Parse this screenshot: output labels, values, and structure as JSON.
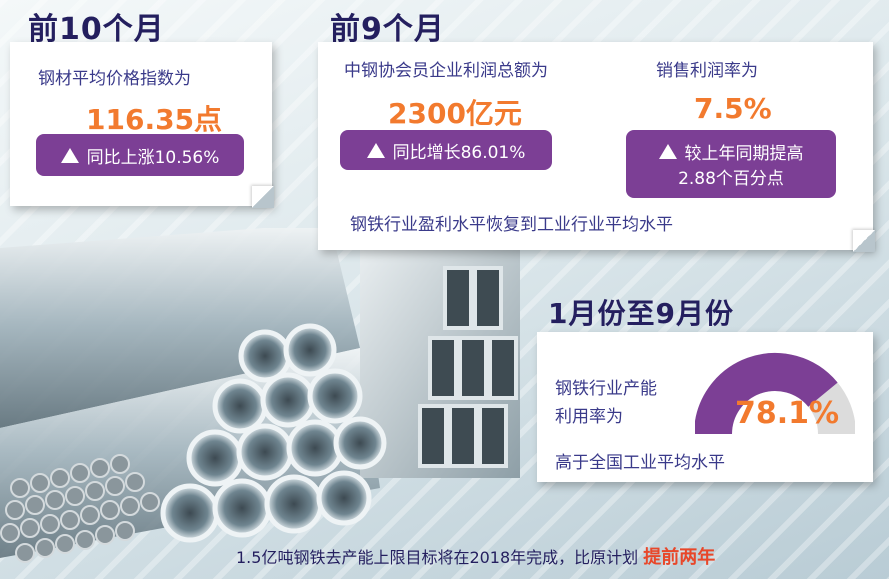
{
  "section1": {
    "heading": "前10个月",
    "label": "钢材平均价格指数为",
    "value": "116.35点",
    "badge": "同比上涨10.56%"
  },
  "section2": {
    "heading": "前9个月",
    "profit_label": "中钢协会员企业利润总额为",
    "profit_value": "2300亿元",
    "profit_badge": "同比增长86.01%",
    "margin_label": "销售利润率为",
    "margin_value": "7.5%",
    "margin_badge_line1": "较上年同期提高",
    "margin_badge_line2": "2.88个百分点",
    "note": "钢铁行业盈利水平恢复到工业行业平均水平"
  },
  "section3": {
    "heading": "1月份至9月份",
    "label_line1": "钢铁行业产能",
    "label_line2": "利用率为",
    "value": "78.1%",
    "gauge_fraction": 0.781,
    "note": "高于全国工业平均水平"
  },
  "footer": {
    "text": "1.5亿吨钢铁去产能上限目标将在2018年完成，比原计划",
    "highlight": "提前两年"
  },
  "colors": {
    "purple": "#7c3f95",
    "orange": "#f27a2e",
    "navy": "#241f5f",
    "gauge_bg": "#dcdcdc"
  }
}
